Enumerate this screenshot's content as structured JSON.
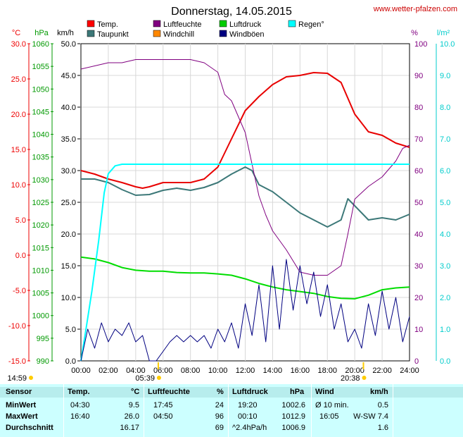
{
  "header": {
    "title": "Donnerstag, 14.05.2015",
    "website": "www.wetter-pfalzen.com"
  },
  "chart_data": {
    "type": "line",
    "title": "Donnerstag, 14.05.2015",
    "x_ticks": [
      "00:00",
      "02:00",
      "04:00",
      "06:00",
      "08:00",
      "10:00",
      "12:00",
      "14:00",
      "16:00",
      "18:00",
      "20:00",
      "22:00",
      "24:00"
    ],
    "xlim_hours": [
      0,
      24
    ],
    "sun": {
      "sunrise_marker": "05:39",
      "sunset_marker": "20:38",
      "left_label": "14:59"
    },
    "axes": {
      "temp": {
        "unit": "°C",
        "color": "#ee0000",
        "min": -15,
        "max": 30,
        "ticks": [
          "30.0",
          "25.0",
          "20.0",
          "15.0",
          "10.0",
          "5.0",
          "0.0",
          "-5.0",
          "-10.0",
          "-15.0"
        ]
      },
      "press": {
        "unit": "hPa",
        "color": "#009900",
        "min": 990,
        "max": 1060,
        "ticks": [
          "1060",
          "1055",
          "1050",
          "1045",
          "1040",
          "1035",
          "1030",
          "1025",
          "1020",
          "1015",
          "1010",
          "1005",
          "1000",
          "995",
          "990"
        ]
      },
      "wind": {
        "unit": "km/h",
        "color": "#000000",
        "min": 0,
        "max": 50,
        "ticks": [
          "50.0",
          "45.0",
          "40.0",
          "35.0",
          "30.0",
          "25.0",
          "20.0",
          "15.0",
          "10.0",
          "5.0",
          "0.0"
        ]
      },
      "hum": {
        "unit": "%",
        "color": "#800080",
        "min": 0,
        "max": 100,
        "ticks": [
          "100",
          "90",
          "80",
          "70",
          "60",
          "50",
          "40",
          "30",
          "20",
          "10",
          "0"
        ]
      },
      "rain": {
        "unit": "l/m²",
        "color": "#00cccc",
        "min": 0,
        "max": 10,
        "ticks": [
          "10.0",
          "9.0",
          "8.0",
          "7.0",
          "6.0",
          "5.0",
          "4.0",
          "3.0",
          "2.0",
          "1.0",
          "0.0"
        ]
      }
    },
    "legend": [
      {
        "label": "Temp.",
        "color": "#ff0000"
      },
      {
        "label": "Luftfeuchte",
        "color": "#800080"
      },
      {
        "label": "Luftdruck",
        "color": "#00cc00"
      },
      {
        "label": "Regen°",
        "color": "#00ffff"
      },
      {
        "label": "Taupunkt",
        "color": "#3c7878"
      },
      {
        "label": "Windchill",
        "color": "#ff8800"
      },
      {
        "label": "Windböen",
        "color": "#000080"
      }
    ],
    "series": [
      {
        "name": "Temp.",
        "axis": "temp",
        "color": "#e80000",
        "width": 2,
        "x": [
          0,
          1,
          2,
          3,
          4,
          4.5,
          5,
          6,
          7,
          8,
          9,
          10,
          11,
          12,
          13,
          14,
          15,
          16,
          17,
          18,
          19,
          20,
          21,
          22,
          23,
          24
        ],
        "y": [
          12,
          11.5,
          10.8,
          10.3,
          9.7,
          9.5,
          9.7,
          10.3,
          10.3,
          10.3,
          10.8,
          12.5,
          16.5,
          20.5,
          22.5,
          24.2,
          25.3,
          25.5,
          25.9,
          25.8,
          24.5,
          20,
          17.5,
          17,
          15.9,
          15.3
        ]
      },
      {
        "name": "Taupunkt",
        "axis": "temp",
        "color": "#3c7878",
        "width": 2,
        "x": [
          0,
          1,
          2,
          3,
          4,
          5,
          6,
          7,
          8,
          9,
          10,
          11,
          12,
          12.5,
          13,
          14,
          15,
          16,
          17,
          18,
          19,
          19.5,
          20,
          20.5,
          21,
          22,
          23,
          24
        ],
        "y": [
          10.8,
          10.8,
          10.3,
          9.3,
          8.5,
          8.6,
          9.2,
          9.5,
          9.2,
          9.6,
          10.3,
          11.5,
          12.5,
          12,
          10,
          9,
          7.5,
          6,
          5,
          4,
          5,
          8,
          7,
          6,
          5,
          5.3,
          5,
          5.8
        ]
      },
      {
        "name": "Luftfeuchte",
        "axis": "hum",
        "color": "#800080",
        "width": 1,
        "x": [
          0,
          1,
          2,
          3,
          4,
          5,
          6,
          7,
          8,
          9,
          10,
          10.5,
          11,
          12,
          12.5,
          13,
          13.5,
          14,
          15,
          16,
          17,
          18,
          19,
          19.5,
          20,
          21,
          22,
          23,
          23.5,
          24
        ],
        "y": [
          92,
          93,
          94,
          94,
          95,
          95,
          95,
          95,
          95,
          94,
          91,
          84,
          82,
          72,
          62,
          52,
          46,
          41,
          35,
          28,
          27,
          27,
          30,
          40,
          51,
          55,
          58,
          63,
          67,
          68
        ]
      },
      {
        "name": "Luftdruck",
        "axis": "press",
        "color": "#00dd00",
        "width": 2,
        "x": [
          0,
          1,
          2,
          3,
          4,
          5,
          6,
          7,
          8,
          9,
          10,
          11,
          12,
          13,
          14,
          15,
          16,
          17,
          18,
          19,
          20,
          21,
          22,
          23,
          24
        ],
        "y": [
          1012.9,
          1012.5,
          1011.7,
          1010.6,
          1010,
          1009.8,
          1009.8,
          1009.5,
          1009.4,
          1009.4,
          1009.2,
          1008.9,
          1008.1,
          1007.1,
          1006.3,
          1005.7,
          1005.3,
          1004.9,
          1004.2,
          1003.8,
          1003.7,
          1004.5,
          1005.7,
          1006.1,
          1006.3
        ]
      },
      {
        "name": "Regen°",
        "axis": "rain",
        "color": "#00ffff",
        "width": 2,
        "x": [
          0,
          0.3,
          0.8,
          1.3,
          1.7,
          2,
          2.5,
          3,
          24
        ],
        "y": [
          0,
          0.8,
          2.2,
          3.8,
          5.3,
          5.9,
          6.15,
          6.2,
          6.2
        ]
      },
      {
        "name": "Windböen",
        "axis": "wind",
        "color": "#000080",
        "width": 1,
        "x": [
          0,
          0.5,
          1,
          1.5,
          2,
          2.5,
          3,
          3.5,
          4,
          4.5,
          5,
          5.5,
          6,
          6.5,
          7,
          7.5,
          8,
          8.5,
          9,
          9.5,
          10,
          10.5,
          11,
          11.5,
          12,
          12.5,
          13,
          13.5,
          14,
          14.5,
          15,
          15.5,
          16,
          16.5,
          17,
          17.5,
          18,
          18.5,
          19,
          19.5,
          20,
          20.5,
          21,
          21.5,
          22,
          22.5,
          23,
          23.5,
          24
        ],
        "y": [
          0,
          5,
          2,
          6,
          3,
          5,
          4,
          6,
          3,
          4,
          0,
          0,
          1.5,
          3,
          4,
          3,
          4,
          3,
          4,
          2,
          5,
          3,
          6,
          2,
          9,
          4,
          12,
          3,
          15,
          5,
          16,
          8,
          15,
          9,
          14,
          7,
          12,
          5,
          9,
          3,
          5,
          2,
          9,
          4,
          11,
          5,
          10,
          3,
          7
        ]
      }
    ]
  },
  "table": {
    "headers": {
      "sensor": "Sensor",
      "temp": "Temp.",
      "temp_unit": "°C",
      "hum": "Luftfeuchte",
      "hum_unit": "%",
      "press": "Luftdruck",
      "press_unit": "hPa",
      "wind": "Wind",
      "wind_unit": "km/h"
    },
    "rows": [
      {
        "label": "MinWert",
        "temp_time": "04:30",
        "temp_val": "9.5",
        "hum_time": "17:45",
        "hum_val": "24",
        "press_time": "19:20",
        "press_val": "1002.6",
        "wind_time": "Ø 10 min.",
        "wind_val": "0.5"
      },
      {
        "label": "MaxWert",
        "temp_time": "16:40",
        "temp_val": "26.0",
        "hum_time": "04:50",
        "hum_val": "96",
        "press_time": "00:10",
        "press_val": "1012.9",
        "wind_time": "16:05",
        "wind_val": "W-SW 7.4"
      },
      {
        "label": "Durchschnitt",
        "temp_time": "",
        "temp_val": "16.17",
        "hum_time": "",
        "hum_val": "69",
        "press_time": "^2.4hPa/h",
        "press_val": "1006.9",
        "wind_time": "",
        "wind_val": "1.6"
      }
    ]
  }
}
